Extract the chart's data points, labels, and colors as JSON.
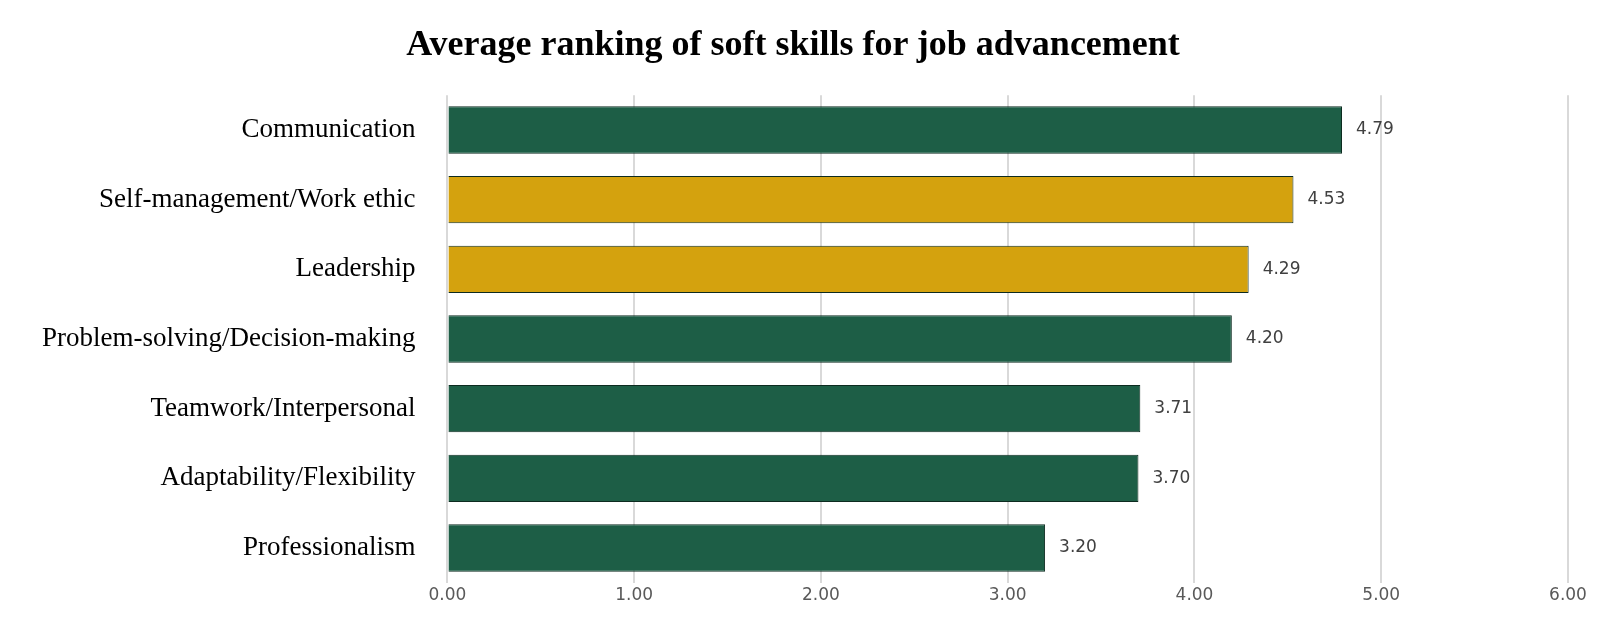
{
  "chart_data": {
    "type": "bar",
    "orientation": "horizontal",
    "title": "Average ranking of soft skills for job advancement",
    "categories": [
      "Communication",
      "Self-management/Work ethic",
      "Leadership",
      "Problem-solving/Decision-making",
      "Teamwork/Interpersonal",
      "Adaptability/Flexibility",
      "Professionalism"
    ],
    "values": [
      4.79,
      4.53,
      4.29,
      4.2,
      3.71,
      3.7,
      3.2
    ],
    "colors": [
      "#1d5e46",
      "#d4a20e",
      "#d4a20e",
      "#1d5e46",
      "#1d5e46",
      "#1d5e46",
      "#1d5e46"
    ],
    "value_labels": [
      "4.79",
      "4.53",
      "4.29",
      "4.20",
      "3.71",
      "3.70",
      "3.20"
    ],
    "xlim": [
      0,
      6
    ],
    "xticks": [
      {
        "value": 0,
        "label": "0.00"
      },
      {
        "value": 1,
        "label": "1.00"
      },
      {
        "value": 2,
        "label": "2.00"
      },
      {
        "value": 3,
        "label": "3.00"
      },
      {
        "value": 4,
        "label": "4.00"
      },
      {
        "value": 5,
        "label": "5.00"
      },
      {
        "value": 6,
        "label": "6.00"
      }
    ],
    "grid": "x",
    "legend": false
  }
}
